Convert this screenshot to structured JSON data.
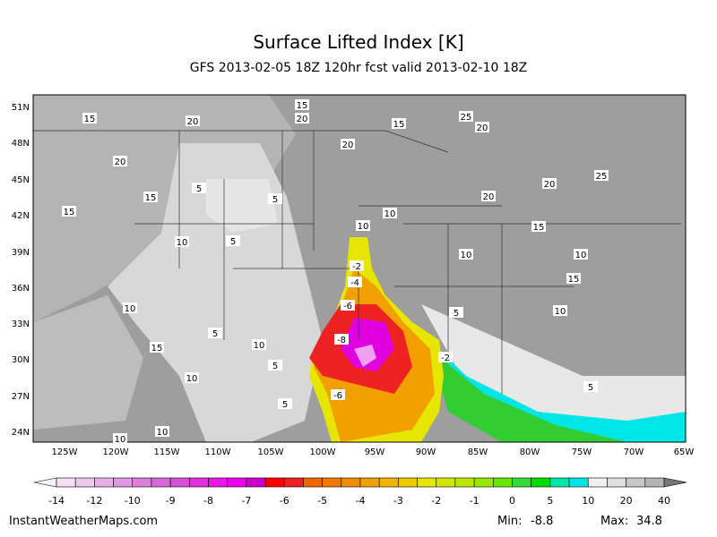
{
  "header": {
    "title": "Surface Lifted Index [K]",
    "subtitle": "GFS 2013-02-05 18Z 120hr fcst valid 2013-02-10 18Z"
  },
  "map": {
    "lat_labels": [
      "51N",
      "48N",
      "45N",
      "42N",
      "39N",
      "36N",
      "33N",
      "30N",
      "27N",
      "24N"
    ],
    "lon_labels": [
      "125W",
      "120W",
      "115W",
      "110W",
      "105W",
      "100W",
      "95W",
      "90W",
      "85W",
      "80W",
      "75W",
      "70W",
      "65W"
    ],
    "contour_labels": [
      "15",
      "20",
      "15",
      "20",
      "15",
      "5",
      "15",
      "10",
      "5",
      "5",
      "10",
      "15",
      "10",
      "20",
      "15",
      "25",
      "20",
      "20",
      "20",
      "25",
      "15",
      "10",
      "20",
      "15",
      "10",
      "5",
      "10",
      "10",
      "5",
      "5",
      "10",
      "10",
      "10",
      "-2",
      "-4",
      "-6",
      "-8",
      "-6",
      "-2",
      "5",
      "10",
      "5"
    ]
  },
  "colorbar": {
    "labels": [
      "-14",
      "-12",
      "-10",
      "-9",
      "-8",
      "-7",
      "-6",
      "-5",
      "-4",
      "-3",
      "-2",
      "-1",
      "0",
      "5",
      "10",
      "20",
      "40"
    ]
  },
  "footer": {
    "site": "InstantWeatherMaps.com",
    "min_label": "Min:",
    "min_value": "-8.8",
    "max_label": "Max:",
    "max_value": "34.8"
  }
}
